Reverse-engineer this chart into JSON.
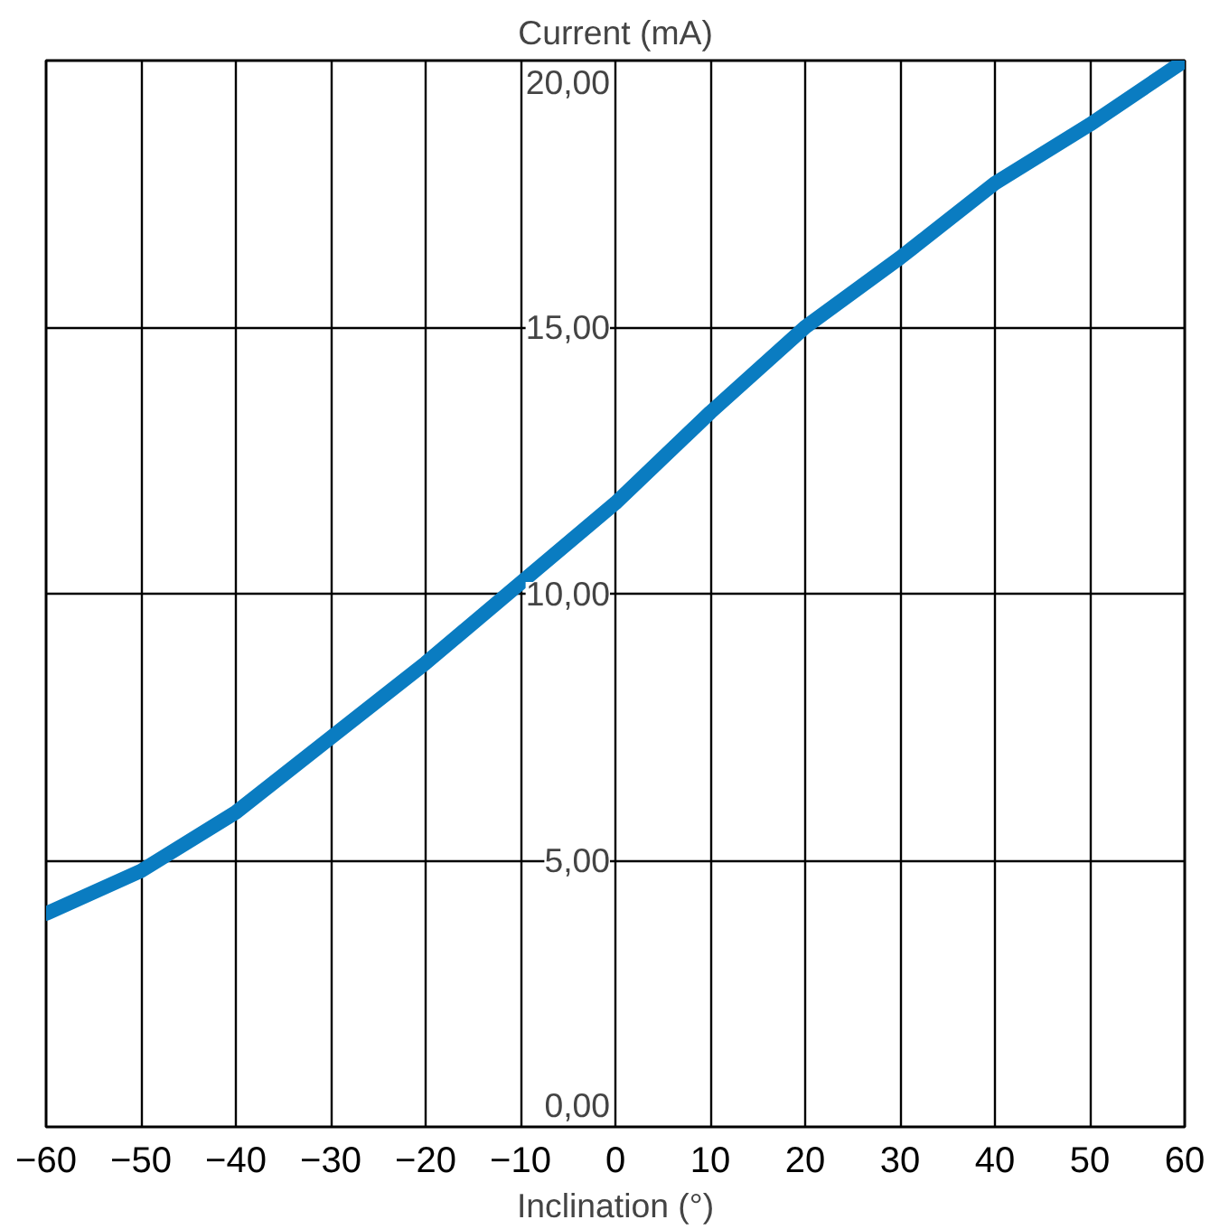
{
  "chart_data": {
    "type": "line",
    "ylabel": "Current (mA)",
    "xlabel": "Inclination (°)",
    "x": [
      -60,
      -50,
      -40,
      -30,
      -20,
      -10,
      0,
      10,
      20,
      30,
      40,
      50,
      60
    ],
    "series": [
      {
        "color": "#0a7cc1",
        "values": [
          4.0,
          4.8,
          5.9,
          7.3,
          8.7,
          10.2,
          11.7,
          13.4,
          15.0,
          16.3,
          17.7,
          18.8,
          20.0
        ]
      }
    ],
    "xlim": [
      -60,
      60
    ],
    "ylim": [
      0,
      20
    ],
    "xticks": [
      {
        "value": -60,
        "label": "−60"
      },
      {
        "value": -50,
        "label": "−50"
      },
      {
        "value": -40,
        "label": "−40"
      },
      {
        "value": -30,
        "label": "−30"
      },
      {
        "value": -20,
        "label": "−20"
      },
      {
        "value": -10,
        "label": "−10"
      },
      0,
      10,
      20,
      30,
      40,
      50,
      60
    ],
    "yticks": [
      {
        "value": 0,
        "label": "0,00"
      },
      {
        "value": 5,
        "label": "5,00"
      },
      {
        "value": 10,
        "label": "10,00"
      },
      {
        "value": 15,
        "label": "15,00"
      },
      {
        "value": 20,
        "label": "20,00"
      }
    ],
    "grid": true,
    "line_style": "solid",
    "marker": "none"
  }
}
